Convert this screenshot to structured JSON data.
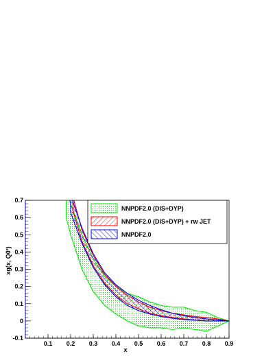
{
  "chart_data": {
    "type": "area",
    "xlabel": "x",
    "ylabel": "xg(x, Q0²)",
    "xlim": [
      0.0,
      0.9
    ],
    "ylim": [
      -0.1,
      0.7
    ],
    "x_ticks": [
      0.1,
      0.2,
      0.3,
      0.4,
      0.5,
      0.6,
      0.7,
      0.8,
      0.9
    ],
    "y_ticks": [
      -0.1,
      0,
      0.1,
      0.2,
      0.3,
      0.4,
      0.5,
      0.6,
      0.7
    ],
    "x_tick_labels": [
      "0.1",
      "0.2",
      "0.3",
      "0.4",
      "0.5",
      "0.6",
      "0.7",
      "0.8",
      "0.9"
    ],
    "y_tick_labels": [
      "-0.1",
      "0",
      "0.1",
      "0.2",
      "0.3",
      "0.4",
      "0.5",
      "0.6",
      "0.7"
    ],
    "legend_position": "top-right",
    "series": [
      {
        "name": "NNPDF2.0 (DIS+DYP)",
        "color": "#00ee00",
        "fill_style": "dotted",
        "x": [
          0.18,
          0.2,
          0.25,
          0.3,
          0.35,
          0.4,
          0.45,
          0.5,
          0.55,
          0.6,
          0.65,
          0.7,
          0.75,
          0.8,
          0.85,
          0.9
        ],
        "upper": [
          0.74,
          0.68,
          0.5,
          0.36,
          0.26,
          0.2,
          0.16,
          0.14,
          0.11,
          0.09,
          0.08,
          0.08,
          0.06,
          0.05,
          0.02,
          0.0
        ],
        "lower": [
          0.6,
          0.5,
          0.3,
          0.17,
          0.09,
          0.04,
          0.0,
          -0.03,
          -0.04,
          -0.04,
          -0.05,
          -0.04,
          -0.05,
          -0.06,
          -0.03,
          0.0
        ]
      },
      {
        "name": "NNPDF2.0 (DIS+DYP) + rw JET",
        "color": "#ee0000",
        "fill_style": "hatch-right",
        "x": [
          0.21,
          0.25,
          0.3,
          0.35,
          0.4,
          0.45,
          0.5,
          0.55,
          0.6,
          0.65,
          0.7,
          0.75,
          0.8,
          0.85,
          0.9
        ],
        "upper": [
          0.72,
          0.53,
          0.38,
          0.27,
          0.2,
          0.15,
          0.11,
          0.08,
          0.06,
          0.045,
          0.035,
          0.025,
          0.02,
          0.012,
          0.0
        ],
        "lower": [
          0.64,
          0.46,
          0.32,
          0.22,
          0.15,
          0.1,
          0.07,
          0.045,
          0.03,
          0.02,
          0.012,
          0.005,
          0.0,
          0.0,
          0.0
        ]
      },
      {
        "name": "NNPDF2.0",
        "color": "#0000ee",
        "fill_style": "hatch-left",
        "x": [
          0.2,
          0.25,
          0.3,
          0.35,
          0.4,
          0.45,
          0.5,
          0.55,
          0.6,
          0.65,
          0.7,
          0.75,
          0.8,
          0.85,
          0.9
        ],
        "upper": [
          0.73,
          0.54,
          0.39,
          0.28,
          0.21,
          0.16,
          0.12,
          0.09,
          0.065,
          0.045,
          0.03,
          0.02,
          0.012,
          0.006,
          0.0
        ],
        "lower": [
          0.63,
          0.45,
          0.31,
          0.21,
          0.14,
          0.09,
          0.06,
          0.04,
          0.025,
          0.015,
          0.008,
          0.004,
          0.0,
          0.0,
          0.0
        ]
      }
    ]
  }
}
